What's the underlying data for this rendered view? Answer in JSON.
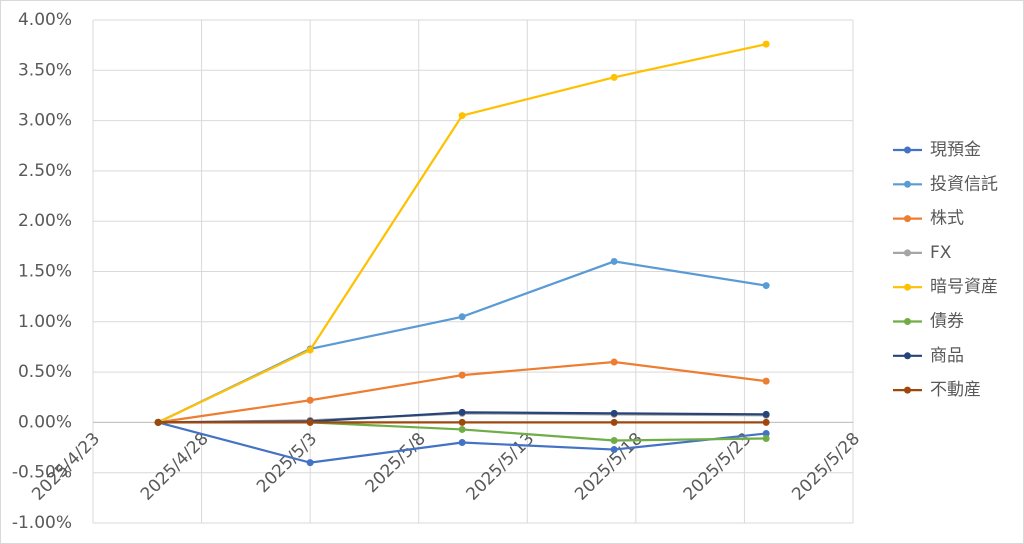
{
  "chart_data": {
    "type": "line",
    "x": [
      "2025/4/26",
      "2025/5/3",
      "2025/5/10",
      "2025/5/17",
      "2025/5/24"
    ],
    "xlim": [
      "2025/4/23",
      "2025/5/28"
    ],
    "xticks": [
      "2025/4/23",
      "2025/4/28",
      "2025/5/3",
      "2025/5/8",
      "2025/5/13",
      "2025/5/18",
      "2025/5/23",
      "2025/5/28"
    ],
    "ylim": [
      -1,
      4
    ],
    "yticks": [
      {
        "value": -1,
        "label": "-1.00%"
      },
      {
        "value": -0.5,
        "label": "-0.50%"
      },
      {
        "value": 0,
        "label": "0.00%"
      },
      {
        "value": 0.5,
        "label": "0.50%"
      },
      {
        "value": 1,
        "label": "1.00%"
      },
      {
        "value": 1.5,
        "label": "1.50%"
      },
      {
        "value": 2,
        "label": "2.00%"
      },
      {
        "value": 2.5,
        "label": "2.50%"
      },
      {
        "value": 3,
        "label": "3.00%"
      },
      {
        "value": 3.5,
        "label": "3.50%"
      },
      {
        "value": 4,
        "label": "4.00%"
      }
    ],
    "grid": true,
    "legend": "right",
    "series": [
      {
        "name": "現預金",
        "color": "#4472c4",
        "values": [
          0,
          -0.4,
          -0.2,
          -0.27,
          -0.11
        ]
      },
      {
        "name": "投資信託",
        "color": "#5b9bd5",
        "values": [
          0,
          0.73,
          1.05,
          1.6,
          1.36
        ]
      },
      {
        "name": "株式",
        "color": "#ed7d31",
        "values": [
          0,
          0.22,
          0.47,
          0.6,
          0.41
        ]
      },
      {
        "name": "FX",
        "color": "#a5a5a5",
        "values": [
          0,
          0.02,
          0.09,
          0.08,
          0.07
        ]
      },
      {
        "name": "暗号資産",
        "color": "#ffc000",
        "values": [
          0,
          0.72,
          3.05,
          3.43,
          3.76
        ]
      },
      {
        "name": "債券",
        "color": "#70ad47",
        "values": [
          0,
          0,
          -0.07,
          -0.18,
          -0.16
        ]
      },
      {
        "name": "商品",
        "color": "#264478",
        "values": [
          0,
          0.01,
          0.1,
          0.09,
          0.08
        ]
      },
      {
        "name": "不動産",
        "color": "#9e480e",
        "values": [
          0,
          0,
          0,
          0,
          0
        ]
      }
    ]
  }
}
